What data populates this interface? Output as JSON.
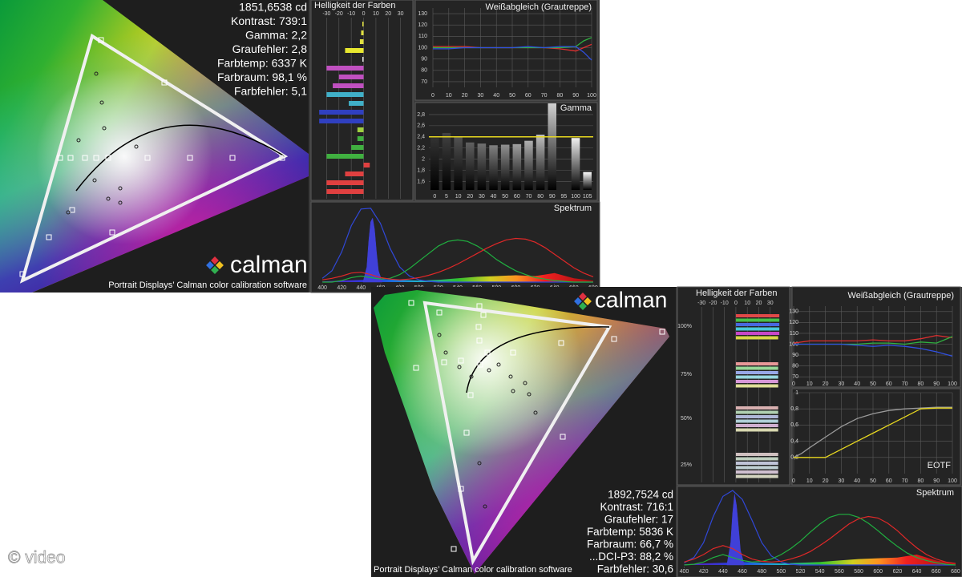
{
  "watermark": "© video",
  "screen1": {
    "cie": {
      "stats": [
        "1851,6538 cd",
        "Kontrast: 739:1",
        "Gamma: 2,2",
        "Graufehler: 2,8",
        "Farbtemp: 6337 K",
        "Farbraum: 98,1 %",
        "Farbfehler: 5,1"
      ],
      "logo": "calman",
      "caption": "Portrait Displays’ Calman color calibration software"
    },
    "brightness": {
      "title": "Helligkeit der Farben",
      "xlim": [
        -40,
        38
      ],
      "xticks": [
        -30,
        -20,
        -10,
        0,
        10,
        20,
        30
      ],
      "colors": [
        "#e0e040",
        "#e0e040",
        "#e0e040",
        "#e8e830",
        "#dddddd",
        "#c050c0",
        "#c050c0",
        "#c050c0",
        "#40b0c8",
        "#40b0c8",
        "#3040c0",
        "#3040c0",
        "#a0d040",
        "#40b040",
        "#40b040",
        "#40b040",
        "#e04040",
        "#e04040",
        "#e04040",
        "#e04040"
      ],
      "values": [
        -1,
        -2,
        -3,
        -15,
        -1,
        -30,
        -20,
        -25,
        -30,
        -12,
        -36,
        -36,
        -5,
        -5,
        -10,
        -30,
        5,
        -15,
        -30,
        -30
      ]
    },
    "white_balance": {
      "title": "Weißabgleich (Grautreppe)",
      "xlim": [
        0,
        100
      ],
      "ylim": [
        65,
        135
      ],
      "xticks": [
        0,
        10,
        20,
        30,
        40,
        50,
        60,
        70,
        80,
        90,
        100
      ],
      "yticks": [
        70,
        80,
        90,
        100,
        110,
        120,
        130
      ],
      "x": [
        0,
        10,
        20,
        30,
        40,
        50,
        60,
        70,
        80,
        90,
        95,
        100
      ],
      "series": [
        {
          "color": "#e03030",
          "values": [
            101,
            101,
            101,
            100,
            100,
            100,
            100,
            100,
            99,
            97,
            100,
            103
          ]
        },
        {
          "color": "#30b040",
          "values": [
            100,
            100,
            100,
            100,
            100,
            100,
            100,
            100,
            100,
            101,
            106,
            109
          ]
        },
        {
          "color": "#3050e0",
          "values": [
            99,
            99,
            100,
            100,
            100,
            100,
            101,
            100,
            101,
            101,
            96,
            89
          ]
        }
      ]
    },
    "gamma": {
      "title": "Gamma",
      "ylim": [
        1.45,
        3
      ],
      "yticks": [
        {
          "value": 1.6,
          "label": "1,6"
        },
        {
          "value": 1.8,
          "label": "1,8"
        },
        2,
        {
          "value": 2.2,
          "label": "2,2"
        },
        {
          "value": 2.4,
          "label": "2,4"
        },
        {
          "value": 2.6,
          "label": "2,6"
        },
        {
          "value": 2.8,
          "label": "2,8"
        }
      ],
      "categories": [
        "0",
        "5",
        "10",
        "20",
        "30",
        "40",
        "50",
        "60",
        "70",
        "80",
        "90",
        "95",
        "100",
        "105"
      ],
      "values": [
        2.38,
        2.47,
        2.4,
        2.3,
        2.28,
        2.25,
        2.26,
        2.27,
        2.33,
        2.44,
        3,
        null,
        2.38,
        1.77
      ],
      "target": 2.4,
      "target_color": "#e8d820"
    },
    "spectrum": {
      "title": "Spektrum",
      "xlim": [
        390,
        685
      ],
      "ylim": [
        0,
        100
      ],
      "xticks": [
        400,
        420,
        440,
        460,
        480,
        500,
        520,
        540,
        560,
        580,
        600,
        620,
        640,
        660,
        680
      ],
      "x": [
        400,
        410,
        420,
        430,
        440,
        450,
        460,
        470,
        480,
        490,
        500,
        510,
        520,
        530,
        540,
        550,
        560,
        570,
        580,
        590,
        600,
        610,
        620,
        630,
        640,
        650,
        660,
        670,
        680
      ],
      "curves": [
        {
          "color": "#3048d8",
          "values": [
            5,
            15,
            40,
            75,
            97,
            98,
            78,
            45,
            20,
            8,
            3,
            1,
            0,
            0,
            0,
            0,
            0,
            0,
            0,
            0,
            0,
            0,
            0,
            0,
            0,
            0,
            0,
            0,
            0
          ]
        },
        {
          "color": "#20b040",
          "values": [
            0,
            0,
            2,
            6,
            8,
            6,
            4,
            5,
            10,
            18,
            28,
            38,
            48,
            54,
            56,
            54,
            48,
            40,
            30,
            22,
            15,
            10,
            6,
            4,
            2,
            1,
            0,
            0,
            0
          ]
        },
        {
          "color": "#e02828",
          "values": [
            3,
            5,
            8,
            12,
            13,
            10,
            6,
            4,
            3,
            4,
            6,
            9,
            13,
            18,
            24,
            31,
            38,
            45,
            51,
            56,
            58,
            57,
            53,
            46,
            37,
            28,
            19,
            12,
            7
          ]
        }
      ],
      "spike": {
        "color": "#4040d8",
        "x": [
          442,
          446,
          448,
          450,
          452,
          454,
          456,
          458,
          462
        ],
        "values": [
          0,
          20,
          55,
          80,
          85,
          70,
          40,
          15,
          0
        ]
      },
      "band": {
        "x": [
          400,
          420,
          440,
          460,
          480,
          500,
          520,
          540,
          560,
          580,
          600,
          620,
          640,
          660,
          680
        ],
        "values": [
          1,
          2,
          3,
          4,
          3,
          2,
          3,
          5,
          7,
          8,
          9,
          8,
          12,
          5,
          2
        ]
      }
    }
  },
  "screen2": {
    "cie": {
      "stats": [
        "1892,7524 cd",
        "Kontrast: 716:1",
        "Graufehler: 17",
        "Farbtemp: 5836 K",
        "Farbraum: 66,7 %",
        "...DCI-P3: 88,2 %",
        "Farbfehler: 30,6"
      ],
      "logo": "calman",
      "caption": "Portrait Displays’ Calman color calibration software"
    },
    "brightness": {
      "title": "Helligkeit der Farben",
      "xlim": [
        -35,
        40
      ],
      "xticks": [
        -30,
        -20,
        -10,
        0,
        10,
        20,
        30
      ],
      "groups": [
        {
          "label": "100%",
          "colors": [
            "#e04848",
            "#48c048",
            "#4868e0",
            "#48c8d8",
            "#c848c8",
            "#d8d848"
          ],
          "values": [
            38,
            38,
            38,
            38,
            38,
            37
          ]
        },
        {
          "label": "75%",
          "colors": [
            "#e89898",
            "#98d898",
            "#98a8e8",
            "#98d8e0",
            "#d898d8",
            "#e0e098"
          ],
          "values": [
            37,
            37,
            37,
            37,
            37,
            37
          ]
        },
        {
          "label": "50%",
          "colors": [
            "#d8b0b0",
            "#b0d0b0",
            "#b0b8d8",
            "#b0d0d8",
            "#d0b0d0",
            "#d8d8b0"
          ],
          "values": [
            37,
            37,
            37,
            37,
            37,
            37
          ]
        },
        {
          "label": "25%",
          "colors": [
            "#d0c0c0",
            "#c0d0c0",
            "#c0c4d8",
            "#c0d0d4",
            "#d0c0d0",
            "#d4d4c0"
          ],
          "values": [
            37,
            37,
            37,
            37,
            37,
            37
          ]
        }
      ]
    },
    "white_balance": {
      "title": "Weißabgleich (Grautreppe)",
      "xlim": [
        0,
        100
      ],
      "ylim": [
        65,
        135
      ],
      "xticks": [
        0,
        10,
        20,
        30,
        40,
        50,
        60,
        70,
        80,
        90,
        100
      ],
      "yticks": [
        70,
        80,
        90,
        100,
        110,
        120,
        130
      ],
      "x": [
        0,
        10,
        20,
        30,
        40,
        50,
        60,
        70,
        80,
        90,
        100
      ],
      "series": [
        {
          "color": "#e03030",
          "values": [
            101,
            103,
            103,
            103,
            103,
            104,
            103,
            103,
            105,
            108,
            106
          ]
        },
        {
          "color": "#30b040",
          "values": [
            100,
            100,
            100,
            100,
            100,
            101,
            101,
            100,
            102,
            101,
            107
          ]
        },
        {
          "color": "#3050e0",
          "values": [
            100,
            100,
            100,
            100,
            99,
            98,
            99,
            98,
            96,
            93,
            89
          ]
        }
      ]
    },
    "eotf": {
      "title": "EOTF",
      "xlim": [
        0,
        100
      ],
      "ylim": [
        0,
        1
      ],
      "xticks": [
        0,
        10,
        20,
        30,
        40,
        50,
        60,
        70,
        80,
        90,
        100
      ],
      "yticks": [
        {
          "value": 0.2,
          "label": "0,2"
        },
        {
          "value": 0.4,
          "label": "0,4"
        },
        {
          "value": 0.6,
          "label": "0,6"
        },
        {
          "value": 0.8,
          "label": "0,8"
        },
        1
      ],
      "x": [
        0,
        5,
        10,
        20,
        30,
        40,
        50,
        60,
        70,
        80,
        90,
        100
      ],
      "series": [
        {
          "color": "#9a9a9a",
          "values": [
            0.2,
            0.25,
            0.32,
            0.45,
            0.58,
            0.68,
            0.74,
            0.78,
            0.8,
            0.81,
            0.82,
            0.82
          ]
        },
        {
          "color": "#e8d820",
          "values": [
            0.2,
            0.2,
            0.2,
            0.2,
            0.3,
            0.4,
            0.5,
            0.6,
            0.7,
            0.8,
            0.81,
            0.81
          ]
        }
      ]
    },
    "spectrum": {
      "title": "Spektrum",
      "xlim": [
        393,
        685
      ],
      "ylim": [
        0,
        100
      ],
      "xticks": [
        400,
        420,
        440,
        460,
        480,
        500,
        520,
        540,
        560,
        580,
        600,
        620,
        640,
        660,
        680
      ],
      "x": [
        400,
        410,
        420,
        430,
        440,
        450,
        460,
        470,
        480,
        490,
        500,
        510,
        520,
        530,
        540,
        550,
        560,
        570,
        580,
        590,
        600,
        610,
        620,
        630,
        640,
        650,
        660,
        670,
        680
      ],
      "curves": [
        {
          "color": "#3048d8",
          "values": [
            3,
            10,
            30,
            65,
            92,
            100,
            88,
            60,
            30,
            12,
            4,
            1,
            0,
            0,
            0,
            0,
            0,
            0,
            0,
            0,
            0,
            0,
            0,
            0,
            0,
            0,
            0,
            0,
            0
          ]
        },
        {
          "color": "#20b040",
          "values": [
            0,
            1,
            4,
            10,
            14,
            10,
            6,
            4,
            5,
            8,
            14,
            22,
            32,
            44,
            55,
            64,
            68,
            68,
            64,
            56,
            46,
            35,
            25,
            16,
            10,
            6,
            3,
            1,
            0
          ]
        },
        {
          "color": "#e02828",
          "values": [
            4,
            8,
            14,
            22,
            26,
            22,
            14,
            8,
            5,
            4,
            5,
            8,
            12,
            18,
            26,
            35,
            45,
            55,
            62,
            65,
            63,
            56,
            46,
            34,
            23,
            14,
            8,
            4,
            2
          ]
        }
      ],
      "spike": {
        "color": "#4040d8",
        "x": [
          444,
          448,
          450,
          452,
          454,
          456,
          458,
          462
        ],
        "values": [
          0,
          30,
          70,
          95,
          80,
          50,
          20,
          0
        ]
      },
      "band": {
        "x": [
          400,
          420,
          440,
          460,
          480,
          500,
          520,
          540,
          560,
          580,
          600,
          620,
          640,
          660,
          680
        ],
        "values": [
          1,
          2,
          3,
          4,
          3,
          2,
          3,
          4,
          6,
          8,
          9,
          10,
          14,
          6,
          2
        ]
      }
    }
  }
}
